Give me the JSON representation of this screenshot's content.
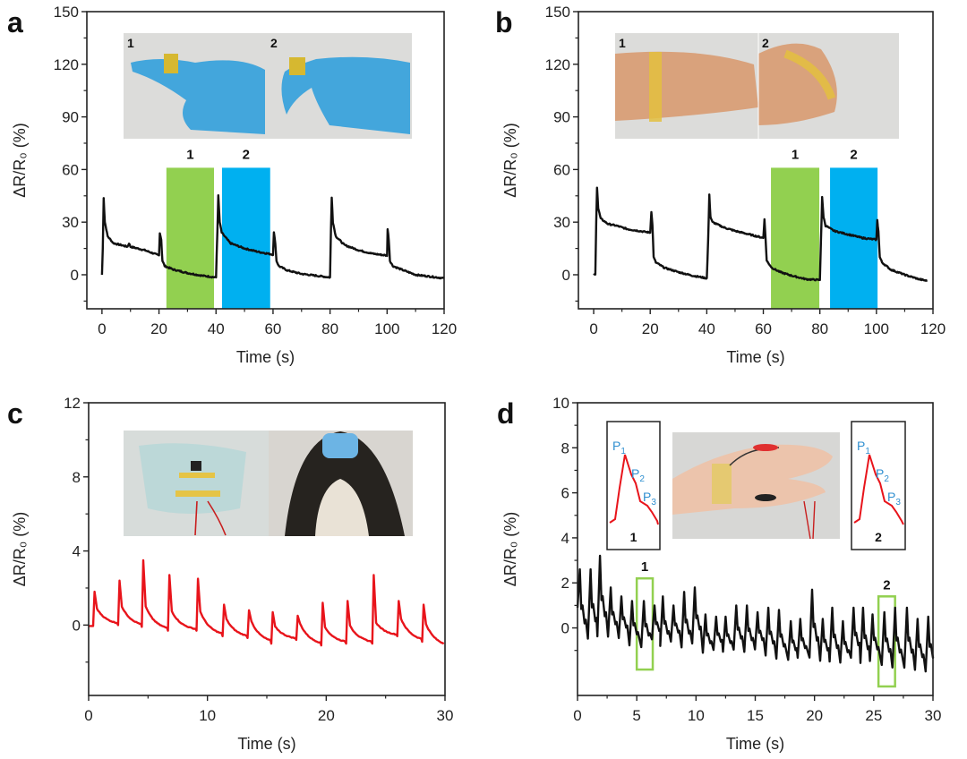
{
  "chart_data": [
    {
      "id": "a",
      "panel_letter": "a",
      "type": "line",
      "xlabel": "Time (s)",
      "ylabel": "ΔR/R₀ (%)",
      "xlim": [
        -5.3,
        120
      ],
      "ylim": [
        -19.4,
        150
      ],
      "xticks": [
        "0",
        "20",
        "40",
        "60",
        "80",
        "100",
        "120"
      ],
      "yticks": [
        "0",
        "30",
        "60",
        "90",
        "120",
        "150"
      ],
      "line_color": "#111111",
      "grid": false,
      "highlights": [
        {
          "label": "1",
          "x0": 22.6,
          "x1": 39.3,
          "top": 61,
          "color": "#92d050"
        },
        {
          "label": "2",
          "x0": 42.1,
          "x1": 59.0,
          "top": 61,
          "color": "#00b0f0"
        }
      ],
      "photo_labels": [
        "1",
        "2"
      ],
      "points": [
        [
          0,
          0
        ],
        [
          0.3,
          15
        ],
        [
          0.6,
          44
        ],
        [
          1,
          30
        ],
        [
          2,
          22
        ],
        [
          4,
          18
        ],
        [
          9,
          16
        ],
        [
          9.5,
          18
        ],
        [
          10,
          16
        ],
        [
          15,
          14
        ],
        [
          20,
          11
        ],
        [
          20.3,
          24
        ],
        [
          20.8,
          20
        ],
        [
          21.2,
          8
        ],
        [
          22,
          5
        ],
        [
          25,
          3
        ],
        [
          30,
          1
        ],
        [
          35,
          -0.5
        ],
        [
          40,
          -1.5
        ],
        [
          40.5,
          25
        ],
        [
          40.8,
          45
        ],
        [
          41.3,
          30
        ],
        [
          42,
          24
        ],
        [
          45,
          18
        ],
        [
          50,
          15
        ],
        [
          55,
          13
        ],
        [
          60,
          11.5
        ],
        [
          60.3,
          24
        ],
        [
          60.8,
          18
        ],
        [
          61.2,
          8
        ],
        [
          62,
          5
        ],
        [
          65,
          2.5
        ],
        [
          70,
          0.5
        ],
        [
          75,
          -0.5
        ],
        [
          80,
          -1.5
        ],
        [
          80.3,
          25
        ],
        [
          80.6,
          44
        ],
        [
          81,
          30
        ],
        [
          82,
          22
        ],
        [
          85,
          17
        ],
        [
          90,
          14
        ],
        [
          95,
          12
        ],
        [
          100,
          11
        ],
        [
          100.2,
          26
        ],
        [
          100.6,
          20
        ],
        [
          101,
          8
        ],
        [
          102,
          5
        ],
        [
          105,
          3
        ],
        [
          110,
          0
        ],
        [
          115,
          -1
        ],
        [
          120,
          -2
        ]
      ]
    },
    {
      "id": "b",
      "panel_letter": "b",
      "type": "line",
      "xlabel": "Time (s)",
      "ylabel": "ΔR/R₀ (%)",
      "xlim": [
        -5.4,
        120
      ],
      "ylim": [
        -19.4,
        150
      ],
      "xticks": [
        "0",
        "20",
        "40",
        "60",
        "80",
        "100",
        "120"
      ],
      "yticks": [
        "0",
        "30",
        "60",
        "90",
        "120",
        "150"
      ],
      "line_color": "#111111",
      "grid": false,
      "highlights": [
        {
          "label": "1",
          "x0": 62.7,
          "x1": 79.8,
          "top": 61,
          "color": "#92d050"
        },
        {
          "label": "2",
          "x0": 83.6,
          "x1": 100.4,
          "top": 61,
          "color": "#00b0f0"
        }
      ],
      "photo_labels": [
        "1",
        "2"
      ],
      "points": [
        [
          0,
          0
        ],
        [
          0.6,
          0
        ],
        [
          0.9,
          30
        ],
        [
          1.2,
          50
        ],
        [
          1.6,
          38
        ],
        [
          2.5,
          32
        ],
        [
          5,
          29
        ],
        [
          8,
          28
        ],
        [
          12,
          26
        ],
        [
          16,
          25
        ],
        [
          20,
          24
        ],
        [
          20.4,
          36
        ],
        [
          20.8,
          28
        ],
        [
          21.2,
          10
        ],
        [
          22,
          7
        ],
        [
          23,
          6
        ],
        [
          25,
          4
        ],
        [
          30,
          1.5
        ],
        [
          35,
          -0.5
        ],
        [
          40,
          -2
        ],
        [
          40.5,
          20
        ],
        [
          40.9,
          46
        ],
        [
          41.3,
          33
        ],
        [
          42,
          30
        ],
        [
          46,
          27
        ],
        [
          50,
          25
        ],
        [
          55,
          23
        ],
        [
          60,
          21
        ],
        [
          60.4,
          32
        ],
        [
          60.8,
          20
        ],
        [
          61.2,
          8
        ],
        [
          63,
          4
        ],
        [
          66,
          1.5
        ],
        [
          70,
          -0.5
        ],
        [
          75,
          -2.5
        ],
        [
          80,
          -3
        ],
        [
          80.4,
          20
        ],
        [
          80.8,
          44
        ],
        [
          81.3,
          33
        ],
        [
          82,
          28
        ],
        [
          85,
          25
        ],
        [
          90,
          23
        ],
        [
          95,
          21
        ],
        [
          100,
          20
        ],
        [
          100.3,
          31
        ],
        [
          100.7,
          25
        ],
        [
          101.2,
          10
        ],
        [
          102,
          7
        ],
        [
          105,
          3
        ],
        [
          110,
          0
        ],
        [
          115,
          -2.5
        ],
        [
          118,
          -3.5
        ]
      ]
    },
    {
      "id": "c",
      "panel_letter": "c",
      "type": "line",
      "xlabel": "Time (s)",
      "ylabel": "ΔR/R₀ (%)",
      "xlim": [
        0,
        30
      ],
      "ylim": [
        -3.8,
        12
      ],
      "xticks": [
        "0",
        "10",
        "20",
        "30"
      ],
      "yticks": [
        "0",
        "4",
        "8",
        "12"
      ],
      "line_color": "#e8141b",
      "grid": false,
      "peaks": [
        {
          "t": 0.5,
          "peak": 1.8,
          "base": -0.05
        },
        {
          "t": 2.6,
          "peak": 2.4,
          "base": 0
        },
        {
          "t": 4.6,
          "peak": 3.5,
          "base": -0.1
        },
        {
          "t": 6.8,
          "peak": 2.7,
          "base": -0.3
        },
        {
          "t": 9.2,
          "peak": 2.5,
          "base": -0.3
        },
        {
          "t": 11.4,
          "peak": 1.1,
          "base": -0.6
        },
        {
          "t": 13.5,
          "peak": 0.8,
          "base": -0.7
        },
        {
          "t": 15.5,
          "peak": 0.7,
          "base": -1.0
        },
        {
          "t": 17.6,
          "peak": 0.5,
          "base": -0.8
        },
        {
          "t": 19.7,
          "peak": 1.2,
          "base": -1.1
        },
        {
          "t": 21.8,
          "peak": 1.3,
          "base": -1.0
        },
        {
          "t": 24.0,
          "peak": 2.7,
          "base": -1.0
        },
        {
          "t": 26.1,
          "peak": 1.3,
          "base": -0.6
        },
        {
          "t": 28.2,
          "peak": 1.1,
          "base": -0.9
        }
      ],
      "end_value": -1.2
    },
    {
      "id": "d",
      "panel_letter": "d",
      "type": "line",
      "xlabel": "Time (s)",
      "ylabel": "ΔR/R₀ (%)",
      "xlim": [
        0,
        30
      ],
      "ylim": [
        -3,
        10
      ],
      "xticks": [
        "0",
        "5",
        "10",
        "15",
        "20",
        "25",
        "30"
      ],
      "yticks": [
        "0",
        "2",
        "4",
        "6",
        "8",
        "10"
      ],
      "line_color": "#111111",
      "grid": false,
      "highlights": [
        {
          "label": "1",
          "x0": 5.0,
          "x1": 6.35,
          "top": 2.2,
          "bottom": -1.85,
          "color": "#92d050"
        },
        {
          "label": "2",
          "x0": 25.4,
          "x1": 26.8,
          "top": 1.4,
          "bottom": -2.6,
          "color": "#92d050"
        }
      ],
      "peaks": [
        [
          0.2,
          2.6
        ],
        [
          1.1,
          2.6
        ],
        [
          1.9,
          3.2
        ],
        [
          2.8,
          1.8
        ],
        [
          3.7,
          1.4
        ],
        [
          4.6,
          1.2
        ],
        [
          5.6,
          1.2
        ],
        [
          6.5,
          1.0
        ],
        [
          7.2,
          1.4
        ],
        [
          8.1,
          1.0
        ],
        [
          9.0,
          1.6
        ],
        [
          9.9,
          1.8
        ],
        [
          10.8,
          0.6
        ],
        [
          11.7,
          0.5
        ],
        [
          12.5,
          0.5
        ],
        [
          13.4,
          1.0
        ],
        [
          14.3,
          1.0
        ],
        [
          15.2,
          0.7
        ],
        [
          16.1,
          0.9
        ],
        [
          17.0,
          0.8
        ],
        [
          18.0,
          0.3
        ],
        [
          18.8,
          0.4
        ],
        [
          19.8,
          1.7
        ],
        [
          20.7,
          0.4
        ],
        [
          21.5,
          0.9
        ],
        [
          22.4,
          0.3
        ],
        [
          23.3,
          0.9
        ],
        [
          24.1,
          0.9
        ],
        [
          24.9,
          0.6
        ],
        [
          25.9,
          0.7
        ],
        [
          26.8,
          0.9
        ],
        [
          27.8,
          0.9
        ],
        [
          28.7,
          0.4
        ],
        [
          29.6,
          0.5
        ]
      ],
      "trough_start": -0.4,
      "trough_end": -1.8,
      "insets": [
        {
          "label": "1",
          "peak_labels": [
            "P",
            "1",
            "P",
            "2",
            "P",
            "3"
          ]
        },
        {
          "label": "2",
          "peak_labels": [
            "P",
            "1",
            "P",
            "2",
            "P",
            "3"
          ]
        }
      ]
    }
  ]
}
